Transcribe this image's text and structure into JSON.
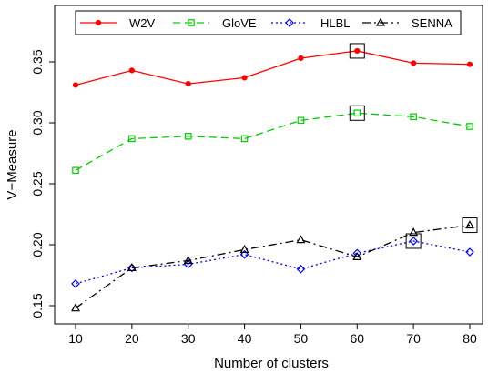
{
  "chart_data": {
    "type": "line",
    "xlabel": "Number of clusters",
    "ylabel": "V−Measure",
    "x": [
      10,
      20,
      30,
      40,
      50,
      60,
      70,
      80
    ],
    "xticks": [
      "10",
      "20",
      "30",
      "40",
      "50",
      "60",
      "70",
      "80"
    ],
    "yticks": [
      "0.15",
      "0.20",
      "0.25",
      "0.30",
      "0.35"
    ],
    "xlim": [
      10,
      80
    ],
    "ylim": [
      0.15,
      0.35
    ],
    "grid": false,
    "legend_position": "top",
    "series": [
      {
        "name": "W2V",
        "color": "#ff0000",
        "line": "solid",
        "marker": "filled-circle",
        "values": [
          0.331,
          0.343,
          0.332,
          0.337,
          0.353,
          0.359,
          0.349,
          0.348
        ],
        "boxed_index": 5
      },
      {
        "name": "GloVE",
        "color": "#00cc00",
        "line": "dashed",
        "marker": "open-square",
        "values": [
          0.261,
          0.287,
          0.289,
          0.287,
          0.302,
          0.308,
          0.305,
          0.297
        ],
        "boxed_index": 5
      },
      {
        "name": "HLBL",
        "color": "#0000ff",
        "line": "dotted",
        "marker": "open-diamond",
        "values": [
          0.168,
          0.181,
          0.184,
          0.192,
          0.18,
          0.193,
          0.203,
          0.194
        ],
        "boxed_index": 6
      },
      {
        "name": "SENNA",
        "color": "#000000",
        "line": "dashdot",
        "marker": "open-triangle",
        "values": [
          0.148,
          0.181,
          0.187,
          0.196,
          0.204,
          0.19,
          0.21,
          0.216
        ],
        "boxed_index": 7
      }
    ]
  }
}
